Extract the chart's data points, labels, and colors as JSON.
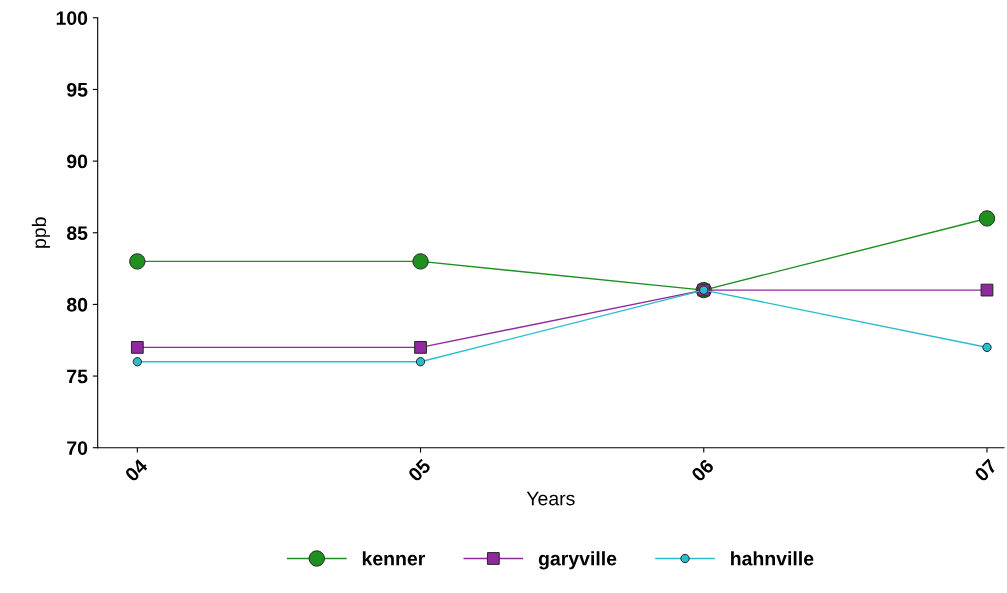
{
  "chart_data": {
    "type": "line",
    "xlabel": "Years",
    "ylabel": "ppb",
    "categories": [
      "04",
      "05",
      "06",
      "07"
    ],
    "series": [
      {
        "name": "kenner",
        "color": "#1f8f1f",
        "marker": "circle",
        "values": [
          83,
          83,
          81,
          86
        ]
      },
      {
        "name": "garyville",
        "color": "#8e2a9e",
        "marker": "square",
        "values": [
          77,
          77,
          81,
          81
        ]
      },
      {
        "name": "hahnville",
        "color": "#2bbccc",
        "marker": "circle",
        "values": [
          76,
          76,
          81,
          77
        ]
      }
    ],
    "ylim": [
      70,
      100
    ],
    "yticks": [
      70,
      75,
      80,
      85,
      90,
      95,
      100
    ],
    "grid": false,
    "legend": "bottom",
    "line_style": "solid"
  }
}
